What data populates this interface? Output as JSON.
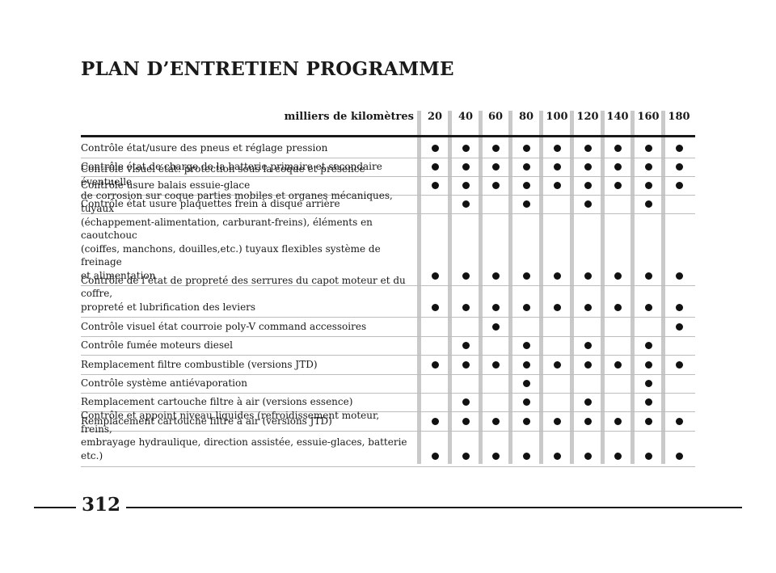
{
  "title": "PLAN D’ENTRETIEN PROGRAMME",
  "header": {
    "label": "milliers de kilomètres",
    "intervals": [
      "20",
      "40",
      "60",
      "80",
      "100",
      "120",
      "140",
      "160",
      "180"
    ]
  },
  "rows": [
    {
      "label": "Contrôle état/usure des pneus et réglage pression",
      "marks": [
        1,
        1,
        1,
        1,
        1,
        1,
        1,
        1,
        1
      ]
    },
    {
      "label": "Contrôle état de charge de la batterie primaire et secondaire",
      "marks": [
        1,
        1,
        1,
        1,
        1,
        1,
        1,
        1,
        1
      ]
    },
    {
      "label": "Contrôle usure balais essuie-glace",
      "marks": [
        1,
        1,
        1,
        1,
        1,
        1,
        1,
        1,
        1
      ]
    },
    {
      "label": "Contrôle état usure plaquettes frein à disque arrière",
      "marks": [
        0,
        1,
        0,
        1,
        0,
        1,
        0,
        1,
        0
      ]
    },
    {
      "label": "Contrôle visuel état: protection sous la coque et présence éventuelle\nde corrosion sur coque parties mobiles et organes mécaniques, tuyaux\n(échappement-alimentation, carburant-freins), éléments en caoutchouc\n(coiffes, manchons, douilles,etc.) tuyaux flexibles système de freinage\net alimentation",
      "marks": [
        1,
        1,
        1,
        1,
        1,
        1,
        1,
        1,
        1
      ]
    },
    {
      "label": "Contrôle de l’état de propreté des serrures du capot moteur et du coffre,\npropreté et lubrification des leviers",
      "marks": [
        1,
        1,
        1,
        1,
        1,
        1,
        1,
        1,
        1
      ]
    },
    {
      "label": "Contrôle visuel état courroie poly-V command accessoires",
      "marks": [
        0,
        0,
        1,
        0,
        0,
        0,
        0,
        0,
        1
      ]
    },
    {
      "label": "Contrôle fumée moteurs diesel",
      "marks": [
        0,
        1,
        0,
        1,
        0,
        1,
        0,
        1,
        0
      ]
    },
    {
      "label": "Remplacement filtre combustible (versions JTD)",
      "marks": [
        1,
        1,
        1,
        1,
        1,
        1,
        1,
        1,
        1
      ]
    },
    {
      "label": "Contrôle système antiévaporation",
      "marks": [
        0,
        0,
        0,
        1,
        0,
        0,
        0,
        1,
        0
      ]
    },
    {
      "label": "Remplacement cartouche filtre à air (versions essence)",
      "marks": [
        0,
        1,
        0,
        1,
        0,
        1,
        0,
        1,
        0
      ]
    },
    {
      "label": "Remplacement cartouche filtre à air (versions JTD)",
      "marks": [
        1,
        1,
        1,
        1,
        1,
        1,
        1,
        1,
        1
      ]
    },
    {
      "label": "Contrôle et appoint niveau liquides (refroidissement moteur, freins,\nembrayage hydraulique, direction assistée, essuie-glaces, batterie etc.)",
      "marks": [
        1,
        1,
        1,
        1,
        1,
        1,
        1,
        1,
        1
      ]
    }
  ],
  "page_number": "312"
}
